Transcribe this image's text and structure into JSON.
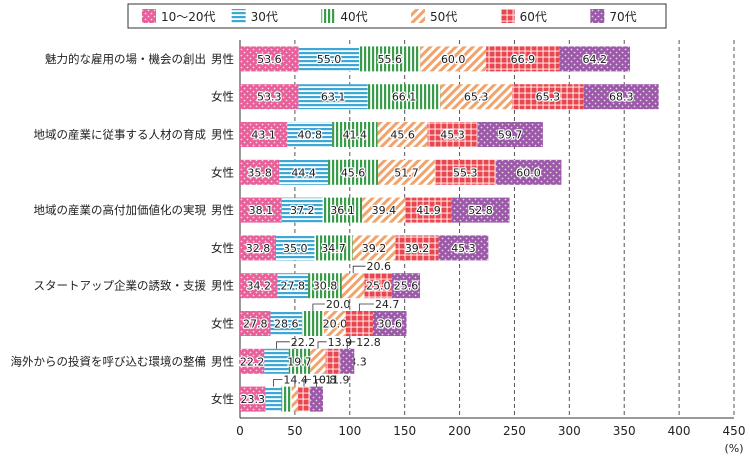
{
  "chart_data": {
    "type": "bar",
    "orientation": "horizontal",
    "stacked": true,
    "unit": "(%)",
    "legend_placement": "top",
    "grid": true,
    "xlim": [
      0,
      450
    ],
    "xticks": [
      0,
      50,
      100,
      150,
      200,
      250,
      300,
      350,
      400,
      450
    ],
    "categories": [
      {
        "group": "魅力的な雇用の場・機会の創出",
        "sex": "男性"
      },
      {
        "group": "",
        "sex": "女性"
      },
      {
        "group": "地域の産業に従事する人材の育成",
        "sex": "男性"
      },
      {
        "group": "",
        "sex": "女性"
      },
      {
        "group": "地域の産業の高付加価値化の実現",
        "sex": "男性"
      },
      {
        "group": "",
        "sex": "女性"
      },
      {
        "group": "スタートアップ企業の誘致・支援",
        "sex": "男性"
      },
      {
        "group": "",
        "sex": "女性"
      },
      {
        "group": "海外からの投資を呼び込む環境の整備",
        "sex": "男性"
      },
      {
        "group": "",
        "sex": "女性"
      }
    ],
    "series": [
      {
        "name": "10～20代",
        "color": "#e8609a",
        "pattern": "dots",
        "values": [
          53.6,
          53.3,
          43.1,
          35.8,
          38.1,
          32.8,
          34.2,
          27.8,
          22.2,
          23.3
        ]
      },
      {
        "name": "30代",
        "color": "#3fa7d6",
        "pattern": "hstripes",
        "values": [
          55.0,
          63.1,
          40.8,
          44.4,
          37.2,
          35.0,
          27.8,
          28.6,
          22.2,
          14.4
        ]
      },
      {
        "name": "40代",
        "color": "#3a9b4a",
        "pattern": "vstripes",
        "values": [
          55.6,
          66.1,
          41.4,
          45.6,
          36.1,
          34.7,
          30.8,
          20.0,
          19.7,
          9.4
        ]
      },
      {
        "name": "50代",
        "color": "#f2a36b",
        "pattern": "diagonal",
        "values": [
          60.0,
          65.3,
          45.6,
          51.7,
          39.4,
          39.2,
          20.6,
          20.0,
          13.9,
          5.8
        ]
      },
      {
        "name": "60代",
        "color": "#e8474f",
        "pattern": "grid",
        "values": [
          66.9,
          65.3,
          45.3,
          55.3,
          41.9,
          39.2,
          25.0,
          24.7,
          13.3,
          10.8
        ]
      },
      {
        "name": "70代",
        "color": "#9b59a8",
        "pattern": "dots",
        "values": [
          64.2,
          68.3,
          59.7,
          60.0,
          52.8,
          45.3,
          25.6,
          30.6,
          12.8,
          11.9
        ]
      }
    ],
    "callout_labels": [
      {
        "row": 6,
        "series": 3
      },
      {
        "row": 7,
        "series": 2
      },
      {
        "row": 7,
        "series": 4
      },
      {
        "row": 8,
        "series": 1
      },
      {
        "row": 8,
        "series": 3
      },
      {
        "row": 8,
        "series": 5
      },
      {
        "row": 9,
        "series": 1
      },
      {
        "row": 9,
        "series": 4
      },
      {
        "row": 9,
        "series": 5
      }
    ]
  }
}
